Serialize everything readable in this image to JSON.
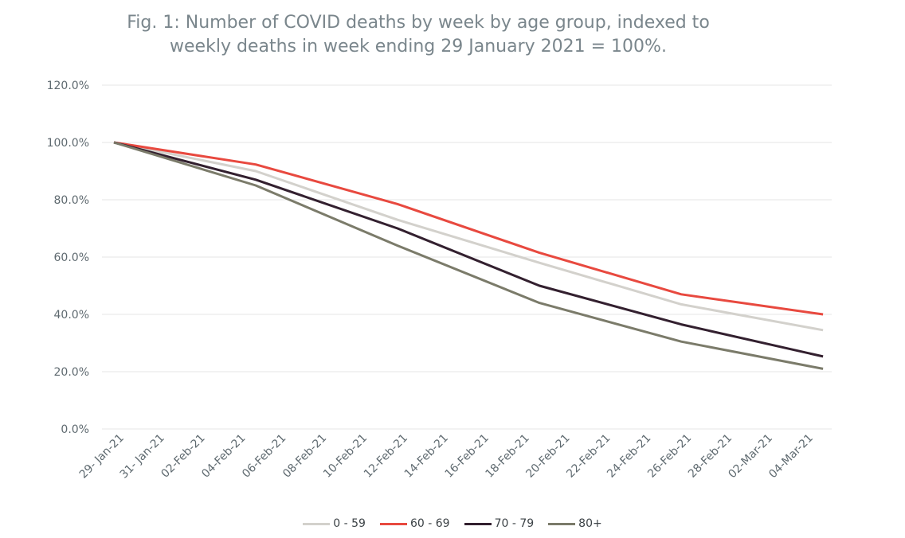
{
  "chart_data": {
    "type": "line",
    "title_line1": "Fig. 1: Number of COVID deaths by week by age group, indexed to",
    "title_line2": "weekly deaths in week ending 29 January 2021 = 100%.",
    "x_ticks": [
      "29- Jan-21",
      "31- Jan-21",
      "02-Feb-21",
      "04-Feb-21",
      "06-Feb-21",
      "08-Feb-21",
      "10-Feb-21",
      "12-Feb-21",
      "14-Feb-21",
      "16-Feb-21",
      "18-Feb-21",
      "20-Feb-21",
      "22-Feb-21",
      "24-Feb-21",
      "26-Feb-21",
      "28-Feb-21",
      "02-Mar-21",
      "04-Mar-21"
    ],
    "x_data": [
      "29-Jan-21",
      "05-Feb-21",
      "12-Feb-21",
      "19-Feb-21",
      "26-Feb-21",
      "05-Mar-21"
    ],
    "y_ticks": [
      "0.0%",
      "20.0%",
      "40.0%",
      "60.0%",
      "80.0%",
      "100.0%",
      "120.0%"
    ],
    "ylim": [
      0,
      120
    ],
    "grid": true,
    "legend_position": "bottom",
    "series": [
      {
        "name": "0 - 59",
        "color": "#d3d1cc",
        "values": [
          100,
          90,
          73,
          58,
          43.5,
          34.5
        ]
      },
      {
        "name": "60 - 69",
        "color": "#e8493f",
        "values": [
          100,
          92.3,
          78.5,
          61.5,
          47,
          40
        ]
      },
      {
        "name": "70 - 79",
        "color": "#33202f",
        "values": [
          100,
          87,
          70,
          50,
          36.5,
          25.3
        ]
      },
      {
        "name": "80+",
        "color": "#7b7b6a",
        "values": [
          100,
          85,
          64,
          44,
          30.5,
          21
        ]
      }
    ]
  }
}
